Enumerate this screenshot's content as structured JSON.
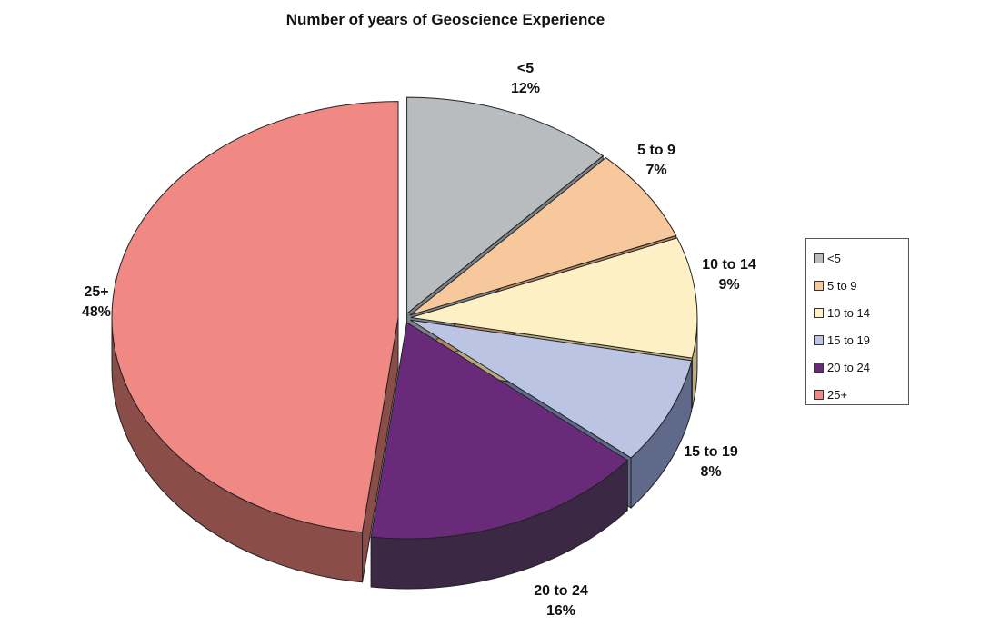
{
  "chart_data": {
    "type": "pie",
    "title": "Number of years of Geoscience Experience",
    "slices": [
      {
        "label": "<5",
        "value": 12,
        "value_label": "12%",
        "color": "#b8bcbf",
        "side": "#7c8286"
      },
      {
        "label": "5 to 9",
        "value": 7,
        "value_label": "7%",
        "color": "#f6c89c",
        "side": "#b08764"
      },
      {
        "label": "10 to 14",
        "value": 9,
        "value_label": "9%",
        "color": "#fdf0c4",
        "side": "#b7ab80"
      },
      {
        "label": "15 to 19",
        "value": 8,
        "value_label": "8%",
        "color": "#bcc4e4",
        "side": "#5f6a8a"
      },
      {
        "label": "20 to 24",
        "value": 16,
        "value_label": "16%",
        "color": "#6a2a7a",
        "side": "#3b2845"
      },
      {
        "label": "25+",
        "value": 48,
        "value_label": "48%",
        "color": "#f08884",
        "side": "#8a4d48"
      }
    ],
    "legend": [
      "<5",
      "5 to 9",
      "10 to 14",
      "15 to 19",
      "20 to 24",
      "25+"
    ],
    "legend_position": "right"
  }
}
